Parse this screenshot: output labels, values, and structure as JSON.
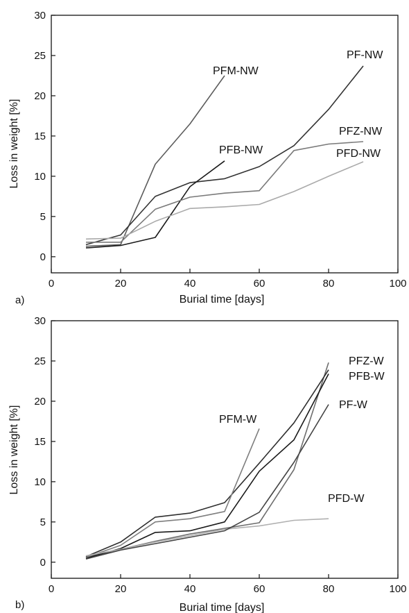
{
  "chart_data": [
    {
      "type": "line",
      "panel_label": "a)",
      "xlabel": "Burial time [days]",
      "ylabel": "Loss in weight [%]",
      "xlim": [
        0,
        100
      ],
      "ylim": [
        -2,
        30
      ],
      "xticks": [
        0,
        20,
        40,
        60,
        80,
        100
      ],
      "yticks": [
        0,
        5,
        10,
        15,
        20,
        25,
        30
      ],
      "grid": false,
      "legend": "none (series labeled directly at line ends)",
      "series": [
        {
          "name": "PFM-NW",
          "color": "#5c5c5c",
          "x": [
            10,
            20,
            30,
            40,
            50
          ],
          "y": [
            1.3,
            1.5,
            11.5,
            16.5,
            22.5
          ]
        },
        {
          "name": "PF-NW",
          "color": "#333333",
          "x": [
            10,
            20,
            30,
            40,
            50,
            60,
            70,
            80,
            90
          ],
          "y": [
            1.5,
            2.7,
            7.5,
            9.2,
            9.7,
            11.2,
            13.8,
            18.3,
            23.7
          ]
        },
        {
          "name": "PFB-NW",
          "color": "#1a1a1a",
          "x": [
            10,
            20,
            30,
            40,
            50
          ],
          "y": [
            1.1,
            1.4,
            2.4,
            8.7,
            11.9
          ]
        },
        {
          "name": "PFZ-NW",
          "color": "#7a7a7a",
          "x": [
            10,
            20,
            30,
            40,
            50,
            60,
            70,
            80,
            90
          ],
          "y": [
            1.8,
            1.8,
            5.9,
            7.4,
            7.9,
            8.2,
            13.2,
            14.0,
            14.3
          ]
        },
        {
          "name": "PFD-NW",
          "color": "#aaaaaa",
          "x": [
            10,
            20,
            30,
            40,
            50,
            60,
            70,
            80,
            90
          ],
          "y": [
            2.2,
            2.3,
            4.4,
            6.0,
            6.2,
            6.5,
            8.1,
            10.0,
            11.8
          ]
        }
      ]
    },
    {
      "type": "line",
      "panel_label": "b)",
      "xlabel": "Burial time [days]",
      "ylabel": "Loss in weight [%]",
      "xlim": [
        0,
        100
      ],
      "ylim": [
        -2,
        30
      ],
      "xticks": [
        0,
        20,
        40,
        60,
        80,
        100
      ],
      "yticks": [
        0,
        5,
        10,
        15,
        20,
        25,
        30
      ],
      "grid": false,
      "legend": "none (series labeled directly at line ends)",
      "series": [
        {
          "name": "PFZ-W",
          "color": "#6e6e6e",
          "x": [
            10,
            20,
            30,
            40,
            50,
            60,
            70,
            80
          ],
          "y": [
            0.6,
            1.6,
            2.6,
            3.5,
            4.2,
            4.9,
            11.5,
            24.8
          ]
        },
        {
          "name": "PFB-W",
          "color": "#1a1a1a",
          "x": [
            10,
            20,
            30,
            40,
            50,
            60,
            70,
            80
          ],
          "y": [
            0.5,
            1.7,
            3.7,
            3.9,
            5.0,
            11.3,
            15.2,
            23.4
          ]
        },
        {
          "name": "PF-W",
          "color": "#2e2e2e",
          "x": [
            10,
            20,
            30,
            40,
            50,
            60,
            70,
            80
          ],
          "y": [
            0.7,
            2.5,
            5.6,
            6.1,
            7.4,
            12.3,
            17.3,
            23.9
          ]
        },
        {
          "name": "PFM-W",
          "color": "#7e7e7e",
          "x": [
            10,
            20,
            30,
            40,
            50,
            60
          ],
          "y": [
            0.6,
            2.1,
            5.0,
            5.4,
            6.3,
            16.6
          ]
        },
        {
          "name": "PFD-W",
          "color": "#b0b0b0",
          "x": [
            10,
            20,
            30,
            40,
            50,
            60,
            70,
            80
          ],
          "y": [
            0.8,
            1.6,
            2.5,
            3.3,
            4.1,
            4.5,
            5.2,
            5.4
          ]
        },
        {
          "name": "",
          "color": "#444444",
          "x": [
            10,
            20,
            30,
            40,
            50,
            60,
            70,
            80
          ],
          "y": [
            0.4,
            1.5,
            2.3,
            3.1,
            3.9,
            6.2,
            12.4,
            19.6
          ]
        }
      ]
    }
  ]
}
